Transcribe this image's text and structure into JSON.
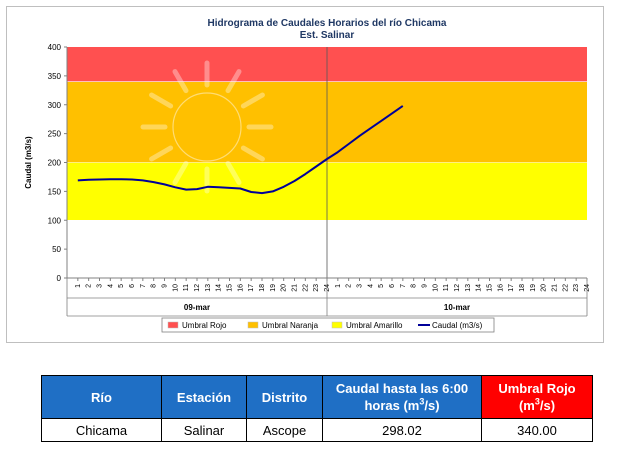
{
  "chart_data": {
    "type": "line",
    "title": "Hidrograma de Caudales Horarios del río Chicama",
    "subtitle": "Est. Salinar",
    "ylabel": "Caudal  (m3/s)",
    "ylim": [
      0,
      400
    ],
    "yticks": [
      0,
      50,
      100,
      150,
      200,
      250,
      300,
      350,
      400
    ],
    "hours_per_day": 24,
    "x_tick_labels": [
      "1",
      "2",
      "3",
      "4",
      "5",
      "6",
      "7",
      "8",
      "9",
      "10",
      "11",
      "12",
      "13",
      "14",
      "15",
      "16",
      "17",
      "18",
      "19",
      "20",
      "21",
      "22",
      "23",
      "24",
      "1",
      "2",
      "3",
      "4",
      "5",
      "6",
      "7",
      "8",
      "9",
      "10",
      "11",
      "12",
      "13",
      "14",
      "15",
      "16",
      "17",
      "18",
      "19",
      "20",
      "21",
      "22",
      "23",
      "24"
    ],
    "day_labels": [
      "09-mar",
      "10-mar"
    ],
    "bands": [
      {
        "name": "Umbral Rojo",
        "from": 340,
        "to": 400,
        "color": "#ff5050"
      },
      {
        "name": "Umbral Naranja",
        "from": 200,
        "to": 340,
        "color": "#ffc000"
      },
      {
        "name": "Umbral Amarillo",
        "from": 100,
        "to": 200,
        "color": "#ffff00"
      }
    ],
    "series": [
      {
        "name": "Caudal (m3/s)",
        "color": "#000099",
        "values": [
          169,
          170,
          170.5,
          171,
          171,
          170.5,
          169,
          166,
          162,
          157,
          153,
          154,
          158,
          157,
          156,
          155,
          149,
          147,
          150,
          158,
          168,
          180,
          193,
          206,
          218,
          232,
          246,
          259,
          272,
          285,
          298
        ]
      }
    ],
    "legend": [
      "Umbral Rojo",
      "Umbral Naranja",
      "Umbral Amarillo",
      "Caudal (m3/s)"
    ],
    "legend_position": "bottom",
    "grid": false
  },
  "table": {
    "headers": {
      "rio": "Río",
      "estacion": "Estación",
      "distrito": "Distrito",
      "caudal_pre": "Caudal hasta las 6:00 horas (m",
      "caudal_post": "/s)",
      "umbral_pre": "Umbral Rojo (m",
      "umbral_post": "/s)",
      "sup": "3"
    },
    "row": {
      "rio": "Chicama",
      "estacion": "Salinar",
      "distrito": "Ascope",
      "caudal": "298.02",
      "umbral": "340.00"
    }
  }
}
